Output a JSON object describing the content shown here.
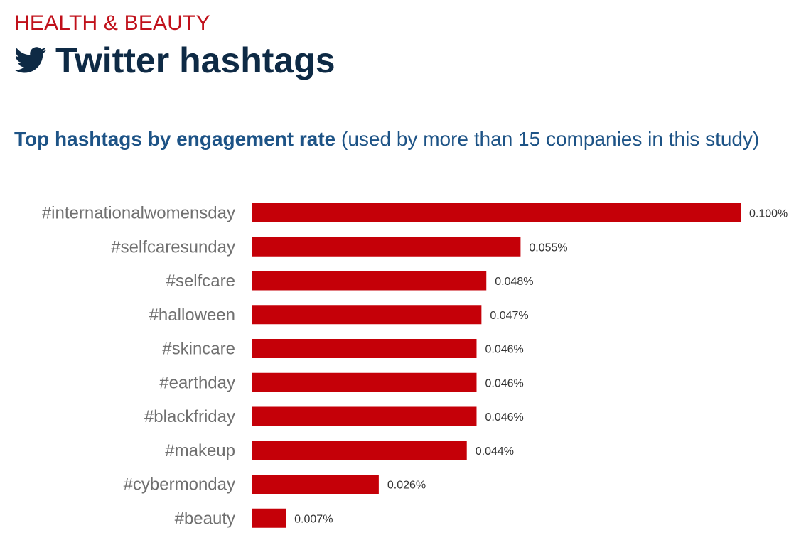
{
  "header": {
    "category": "HEALTH & BEAUTY",
    "title": "Twitter hashtags",
    "icon": "twitter-bird-icon"
  },
  "colors": {
    "accent": "#c0101a",
    "title": "#0e2a45",
    "subtitle": "#1d5386",
    "bar": "#c50008"
  },
  "chart_data": {
    "type": "bar",
    "orientation": "horizontal",
    "title": "Top hashtags by engagement rate",
    "subtitle": "(used by more than 15 companies in this study)",
    "unit": "%",
    "categories": [
      "#internationalwomensday",
      "#selfcaresunday",
      "#selfcare",
      "#halloween",
      "#skincare",
      "#earthday",
      "#blackfriday",
      "#makeup",
      "#cybermonday",
      "#beauty"
    ],
    "values": [
      0.1,
      0.055,
      0.048,
      0.047,
      0.046,
      0.046,
      0.046,
      0.044,
      0.026,
      0.007
    ],
    "labels": [
      "0.100%",
      "0.055%",
      "0.048%",
      "0.047%",
      "0.046%",
      "0.046%",
      "0.046%",
      "0.044%",
      "0.026%",
      "0.007%"
    ],
    "xlim": [
      0,
      0.1
    ],
    "grid": false
  }
}
